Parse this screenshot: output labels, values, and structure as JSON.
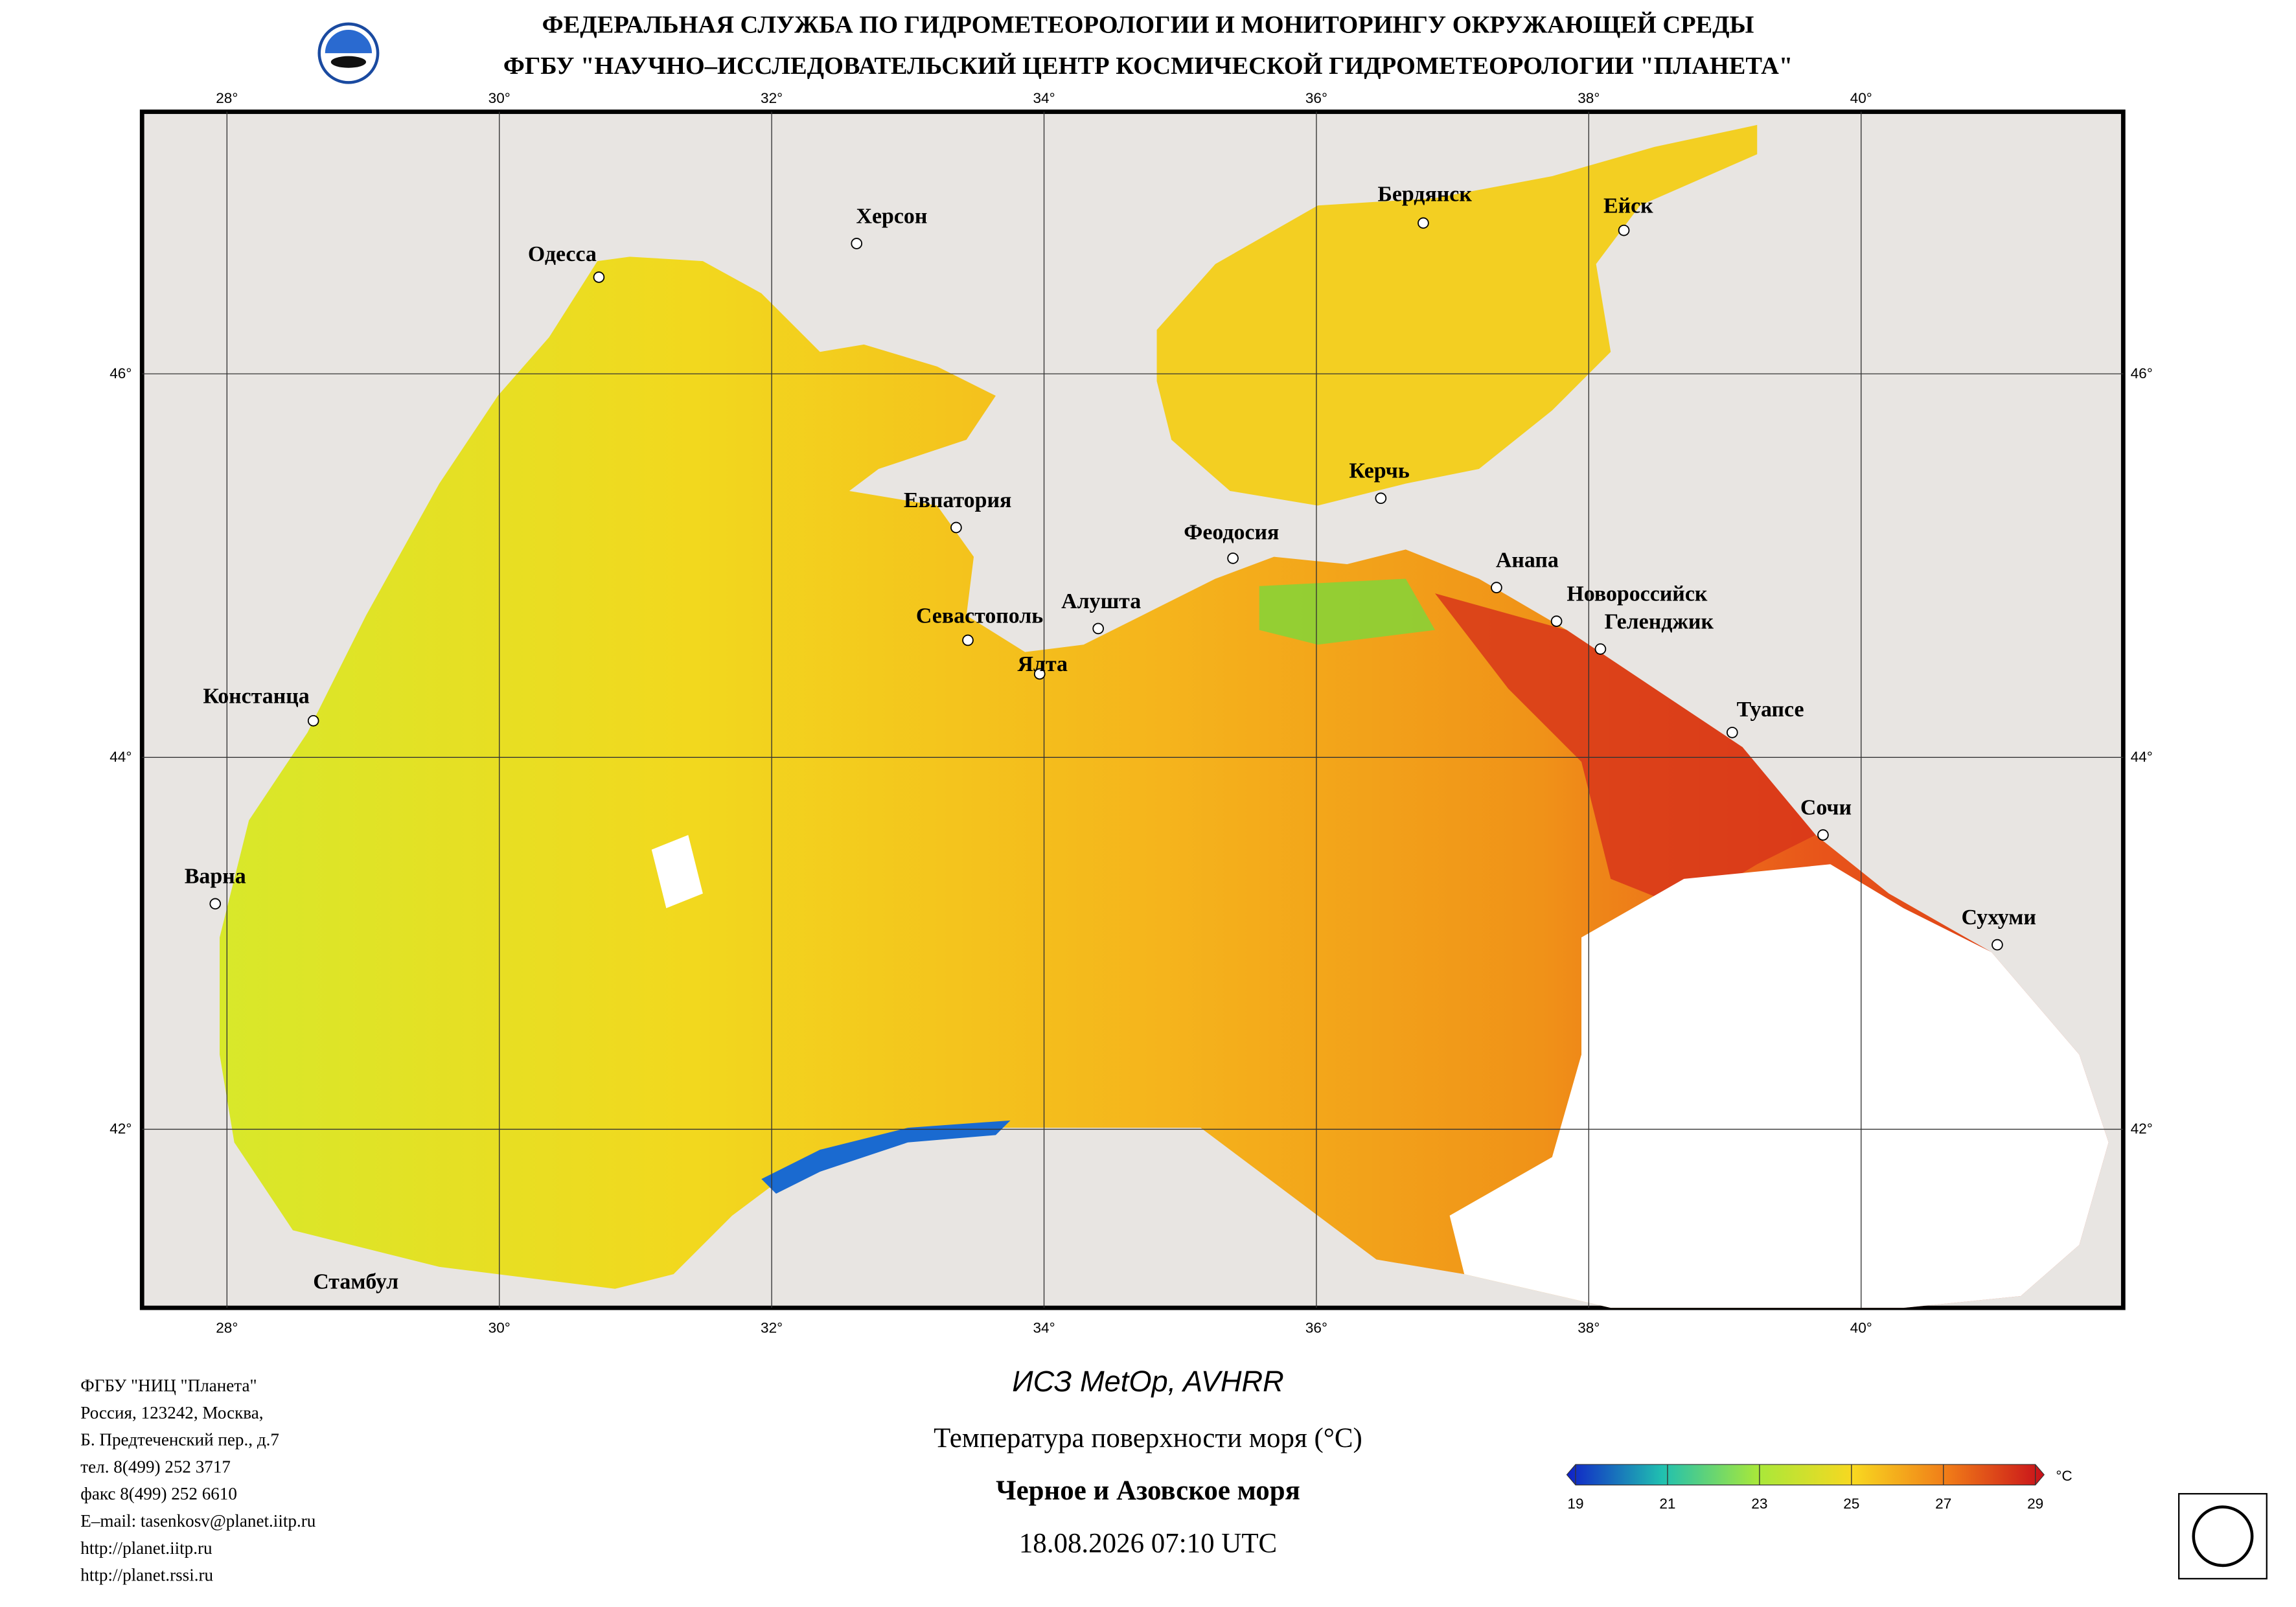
{
  "header": {
    "line1": "ФЕДЕРАЛЬНАЯ СЛУЖБА ПО ГИДРОМЕТЕОРОЛОГИИ И МОНИТОРИНГУ ОКРУЖАЮЩЕЙ СРЕДЫ",
    "line2": "ФГБУ \"НАУЧНО–ИССЛЕДОВАТЕЛЬСКИЙ ЦЕНТР КОСМИЧЕСКОЙ ГИДРОМЕТЕОРОЛОГИИ \"ПЛАНЕТА\""
  },
  "map": {
    "lon_labels": [
      "28°",
      "30°",
      "32°",
      "34°",
      "36°",
      "38°",
      "40°"
    ],
    "lat_labels": [
      "46°",
      "44°",
      "42°"
    ],
    "cities": [
      "Одесса",
      "Херсон",
      "Бердянск",
      "Ейск",
      "Евпатория",
      "Керчь",
      "Феодосия",
      "Анапа",
      "Новороссийск",
      "Геленджик",
      "Севастополь",
      "Алушта",
      "Ялта",
      "Констанца",
      "Туапсе",
      "Сочи",
      "Варна",
      "Сухуми",
      "Стамбул"
    ]
  },
  "caption": {
    "satellite": "ИСЗ MetOp, AVHRR",
    "parameter": "Температура поверхности моря (°C)",
    "region": "Черное и Азовское моря",
    "datetime": "18.08.2026 07:10 UTC"
  },
  "colorbar": {
    "ticks": [
      19,
      21,
      23,
      25,
      27,
      29
    ],
    "unit": "°C"
  },
  "address": [
    "ФГБУ \"НИЦ \"Планета\"",
    "Россия, 123242, Москва,",
    "Б. Предтеченский пер., д.7",
    "тел. 8(499) 252 3717",
    "факс 8(499) 252 6610",
    "E–mail: tasenkosv@planet.iitp.ru",
    "http://planet.iitp.ru",
    "http://planet.rssi.ru"
  ]
}
